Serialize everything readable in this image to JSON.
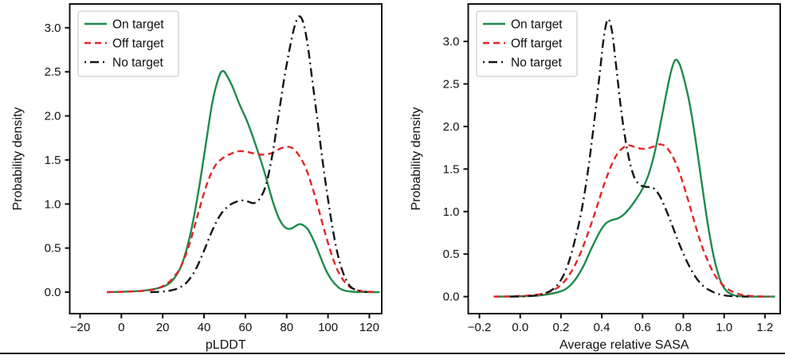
{
  "figure": {
    "panels": [
      "plddt-density",
      "sasa-density"
    ],
    "accent_colors": {
      "on_target": "#1f8b4d",
      "off_target": "#e42527",
      "no_target": "#151515"
    },
    "bottom_border_color": "#111111"
  },
  "chart_data": [
    {
      "type": "line",
      "subtype": "kde-density",
      "title": "",
      "xlabel": "pLDDT",
      "ylabel": "Probability density",
      "xlim": [
        -25,
        126
      ],
      "ylim": [
        -0.244,
        3.27
      ],
      "xticks": [
        -20,
        0,
        20,
        40,
        60,
        80,
        100,
        120
      ],
      "xtick_labels": [
        "−20",
        "0",
        "20",
        "40",
        "60",
        "80",
        "100",
        "120"
      ],
      "yticks": [
        0.0,
        0.5,
        1.0,
        1.5,
        2.0,
        2.5,
        3.0
      ],
      "ytick_labels": [
        "0.0",
        "0.5",
        "1.0",
        "1.5",
        "2.0",
        "2.5",
        "3.0"
      ],
      "grid": false,
      "legend_position": "upper left",
      "series": [
        {
          "name": "On target",
          "color": "#1f8b4d",
          "style": "solid",
          "points": [
            [
              -7,
              0
            ],
            [
              2,
              0.006
            ],
            [
              10,
              0.015
            ],
            [
              16,
              0.035
            ],
            [
              21,
              0.07
            ],
            [
              25,
              0.14
            ],
            [
              29,
              0.3
            ],
            [
              33,
              0.62
            ],
            [
              37,
              1.1
            ],
            [
              41,
              1.7
            ],
            [
              44,
              2.15
            ],
            [
              47,
              2.43
            ],
            [
              49,
              2.51
            ],
            [
              51,
              2.46
            ],
            [
              54,
              2.32
            ],
            [
              57,
              2.14
            ],
            [
              61,
              1.93
            ],
            [
              65,
              1.67
            ],
            [
              69,
              1.38
            ],
            [
              73,
              1.05
            ],
            [
              76,
              0.85
            ],
            [
              79,
              0.74
            ],
            [
              82,
              0.72
            ],
            [
              85,
              0.76
            ],
            [
              87,
              0.77
            ],
            [
              90,
              0.72
            ],
            [
              93,
              0.59
            ],
            [
              96,
              0.42
            ],
            [
              99,
              0.25
            ],
            [
              102,
              0.13
            ],
            [
              105,
              0.055
            ],
            [
              108,
              0.018
            ],
            [
              112,
              0.004
            ],
            [
              118,
              0.001
            ],
            [
              125,
              0
            ]
          ]
        },
        {
          "name": "Off target",
          "color": "#e42527",
          "style": "dashed",
          "points": [
            [
              -7,
              0
            ],
            [
              2,
              0.004
            ],
            [
              8,
              0.01
            ],
            [
              13,
              0.02
            ],
            [
              17,
              0.04
            ],
            [
              21,
              0.08
            ],
            [
              25,
              0.16
            ],
            [
              29,
              0.3
            ],
            [
              33,
              0.55
            ],
            [
              37,
              0.88
            ],
            [
              41,
              1.2
            ],
            [
              45,
              1.42
            ],
            [
              49,
              1.52
            ],
            [
              53,
              1.57
            ],
            [
              57,
              1.6
            ],
            [
              61,
              1.59
            ],
            [
              65,
              1.57
            ],
            [
              69,
              1.56
            ],
            [
              73,
              1.58
            ],
            [
              77,
              1.63
            ],
            [
              80,
              1.65
            ],
            [
              83,
              1.63
            ],
            [
              86,
              1.55
            ],
            [
              89,
              1.42
            ],
            [
              92,
              1.22
            ],
            [
              95,
              0.98
            ],
            [
              98,
              0.72
            ],
            [
              101,
              0.48
            ],
            [
              104,
              0.28
            ],
            [
              107,
              0.15
            ],
            [
              110,
              0.07
            ],
            [
              113,
              0.03
            ],
            [
              117,
              0.01
            ],
            [
              123,
              0
            ]
          ]
        },
        {
          "name": "No target",
          "color": "#151515",
          "style": "dashdot",
          "points": [
            [
              14,
              0
            ],
            [
              20,
              0.006
            ],
            [
              24,
              0.02
            ],
            [
              28,
              0.05
            ],
            [
              32,
              0.12
            ],
            [
              36,
              0.26
            ],
            [
              40,
              0.47
            ],
            [
              44,
              0.7
            ],
            [
              48,
              0.88
            ],
            [
              52,
              0.98
            ],
            [
              55,
              1.02
            ],
            [
              58,
              1.04
            ],
            [
              61,
              1.03
            ],
            [
              64,
              1.01
            ],
            [
              67,
              1.06
            ],
            [
              70,
              1.22
            ],
            [
              73,
              1.55
            ],
            [
              76,
              2.0
            ],
            [
              79,
              2.45
            ],
            [
              82,
              2.83
            ],
            [
              84,
              3.03
            ],
            [
              86,
              3.13
            ],
            [
              88,
              3.06
            ],
            [
              90,
              2.83
            ],
            [
              92,
              2.48
            ],
            [
              95,
              1.93
            ],
            [
              98,
              1.38
            ],
            [
              101,
              0.9
            ],
            [
              104,
              0.5
            ],
            [
              107,
              0.24
            ],
            [
              110,
              0.09
            ],
            [
              113,
              0.03
            ],
            [
              119,
              0
            ]
          ]
        }
      ]
    },
    {
      "type": "line",
      "subtype": "kde-density",
      "title": "",
      "xlabel": "Average relative SASA",
      "ylabel": "Probability density",
      "xlim": [
        -0.255,
        1.275
      ],
      "ylim": [
        -0.2,
        3.44
      ],
      "xticks": [
        -0.2,
        0.0,
        0.2,
        0.4,
        0.6,
        0.8,
        1.0,
        1.2
      ],
      "xtick_labels": [
        "−0.2",
        "0.0",
        "0.2",
        "0.4",
        "0.6",
        "0.8",
        "1.0",
        "1.2"
      ],
      "yticks": [
        0.0,
        0.5,
        1.0,
        1.5,
        2.0,
        2.5,
        3.0
      ],
      "ytick_labels": [
        "0.0",
        "0.5",
        "1.0",
        "1.5",
        "2.0",
        "2.5",
        "3.0"
      ],
      "grid": false,
      "legend_position": "upper left",
      "series": [
        {
          "name": "On target",
          "color": "#1f8b4d",
          "style": "solid",
          "points": [
            [
              -0.12,
              0
            ],
            [
              0.0,
              0.003
            ],
            [
              0.08,
              0.01
            ],
            [
              0.14,
              0.028
            ],
            [
              0.19,
              0.055
            ],
            [
              0.23,
              0.1
            ],
            [
              0.27,
              0.2
            ],
            [
              0.31,
              0.36
            ],
            [
              0.35,
              0.57
            ],
            [
              0.39,
              0.76
            ],
            [
              0.42,
              0.86
            ],
            [
              0.45,
              0.9
            ],
            [
              0.48,
              0.92
            ],
            [
              0.51,
              0.97
            ],
            [
              0.54,
              1.05
            ],
            [
              0.57,
              1.15
            ],
            [
              0.6,
              1.27
            ],
            [
              0.63,
              1.44
            ],
            [
              0.66,
              1.7
            ],
            [
              0.69,
              2.06
            ],
            [
              0.72,
              2.43
            ],
            [
              0.74,
              2.65
            ],
            [
              0.76,
              2.78
            ],
            [
              0.78,
              2.74
            ],
            [
              0.8,
              2.59
            ],
            [
              0.83,
              2.28
            ],
            [
              0.86,
              1.84
            ],
            [
              0.89,
              1.34
            ],
            [
              0.92,
              0.85
            ],
            [
              0.95,
              0.46
            ],
            [
              0.98,
              0.2
            ],
            [
              1.01,
              0.07
            ],
            [
              1.05,
              0.015
            ],
            [
              1.1,
              0.002
            ],
            [
              1.25,
              0
            ]
          ]
        },
        {
          "name": "Off target",
          "color": "#e42527",
          "style": "dashed",
          "points": [
            [
              -0.13,
              0
            ],
            [
              -0.05,
              0.003
            ],
            [
              0.02,
              0.01
            ],
            [
              0.08,
              0.022
            ],
            [
              0.13,
              0.045
            ],
            [
              0.17,
              0.085
            ],
            [
              0.21,
              0.16
            ],
            [
              0.25,
              0.29
            ],
            [
              0.29,
              0.48
            ],
            [
              0.33,
              0.73
            ],
            [
              0.37,
              1.01
            ],
            [
              0.41,
              1.31
            ],
            [
              0.45,
              1.56
            ],
            [
              0.48,
              1.69
            ],
            [
              0.51,
              1.76
            ],
            [
              0.53,
              1.78
            ],
            [
              0.56,
              1.76
            ],
            [
              0.59,
              1.74
            ],
            [
              0.62,
              1.74
            ],
            [
              0.65,
              1.76
            ],
            [
              0.68,
              1.79
            ],
            [
              0.71,
              1.77
            ],
            [
              0.74,
              1.68
            ],
            [
              0.77,
              1.53
            ],
            [
              0.8,
              1.32
            ],
            [
              0.83,
              1.08
            ],
            [
              0.86,
              0.83
            ],
            [
              0.89,
              0.6
            ],
            [
              0.92,
              0.42
            ],
            [
              0.95,
              0.27
            ],
            [
              0.98,
              0.17
            ],
            [
              1.02,
              0.085
            ],
            [
              1.06,
              0.04
            ],
            [
              1.1,
              0.015
            ],
            [
              1.16,
              0.004
            ],
            [
              1.22,
              0
            ]
          ]
        },
        {
          "name": "No target",
          "color": "#151515",
          "style": "dashdot",
          "points": [
            [
              -0.05,
              0
            ],
            [
              0.02,
              0.004
            ],
            [
              0.07,
              0.012
            ],
            [
              0.11,
              0.03
            ],
            [
              0.15,
              0.07
            ],
            [
              0.18,
              0.13
            ],
            [
              0.21,
              0.24
            ],
            [
              0.24,
              0.42
            ],
            [
              0.27,
              0.68
            ],
            [
              0.3,
              1.0
            ],
            [
              0.33,
              1.44
            ],
            [
              0.36,
              2.0
            ],
            [
              0.39,
              2.62
            ],
            [
              0.41,
              3.05
            ],
            [
              0.43,
              3.26
            ],
            [
              0.45,
              3.12
            ],
            [
              0.47,
              2.72
            ],
            [
              0.5,
              2.1
            ],
            [
              0.53,
              1.66
            ],
            [
              0.56,
              1.4
            ],
            [
              0.59,
              1.31
            ],
            [
              0.62,
              1.29
            ],
            [
              0.65,
              1.28
            ],
            [
              0.68,
              1.2
            ],
            [
              0.71,
              1.05
            ],
            [
              0.74,
              0.87
            ],
            [
              0.78,
              0.62
            ],
            [
              0.82,
              0.4
            ],
            [
              0.86,
              0.23
            ],
            [
              0.9,
              0.12
            ],
            [
              0.95,
              0.05
            ],
            [
              1.0,
              0.015
            ],
            [
              1.06,
              0.003
            ],
            [
              1.12,
              0
            ]
          ]
        }
      ]
    }
  ]
}
